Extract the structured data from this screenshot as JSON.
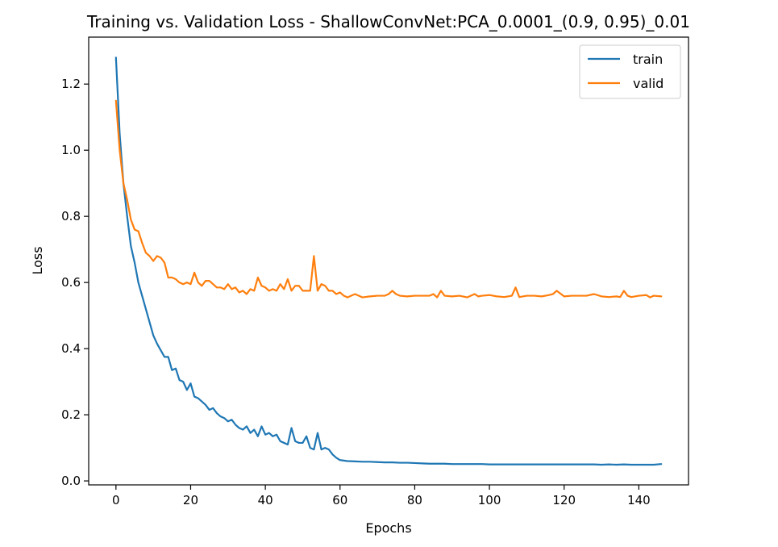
{
  "chart_data": {
    "type": "line",
    "title": "Training vs. Validation Loss - ShallowConvNet:PCA_0.0001_(0.9, 0.95)_0.01",
    "xlabel": "Epochs",
    "ylabel": "Loss",
    "xlim": [
      -7.3,
      153.3
    ],
    "ylim": [
      -0.012,
      1.342
    ],
    "xticks": [
      0,
      20,
      40,
      60,
      80,
      100,
      120,
      140
    ],
    "yticks": [
      0.0,
      0.2,
      0.4,
      0.6,
      0.8,
      1.0,
      1.2
    ],
    "xtick_labels": [
      "0",
      "20",
      "40",
      "60",
      "80",
      "100",
      "120",
      "140"
    ],
    "ytick_labels": [
      "0.0",
      "0.2",
      "0.4",
      "0.6",
      "0.8",
      "1.0",
      "1.2"
    ],
    "grid": false,
    "legend_position": "top-right",
    "series": [
      {
        "name": "train",
        "color": "#1f77b4",
        "x": [
          0,
          1,
          2,
          3,
          4,
          5,
          6,
          7,
          8,
          9,
          10,
          11,
          12,
          13,
          14,
          15,
          16,
          17,
          18,
          19,
          20,
          21,
          22,
          23,
          24,
          25,
          26,
          27,
          28,
          29,
          30,
          31,
          32,
          33,
          34,
          35,
          36,
          37,
          38,
          39,
          40,
          41,
          42,
          43,
          44,
          45,
          46,
          47,
          48,
          49,
          50,
          51,
          52,
          53,
          54,
          55,
          56,
          57,
          58,
          59,
          60,
          62,
          64,
          66,
          68,
          70,
          72,
          74,
          76,
          78,
          80,
          82,
          84,
          86,
          88,
          90,
          92,
          94,
          96,
          98,
          100,
          102,
          104,
          106,
          108,
          110,
          112,
          114,
          116,
          118,
          120,
          122,
          124,
          126,
          128,
          130,
          132,
          134,
          136,
          138,
          140,
          142,
          144,
          146
        ],
        "values": [
          1.28,
          1.05,
          0.9,
          0.8,
          0.71,
          0.66,
          0.6,
          0.56,
          0.52,
          0.48,
          0.44,
          0.415,
          0.395,
          0.375,
          0.375,
          0.335,
          0.34,
          0.305,
          0.3,
          0.275,
          0.295,
          0.255,
          0.25,
          0.24,
          0.23,
          0.215,
          0.22,
          0.205,
          0.195,
          0.19,
          0.18,
          0.185,
          0.17,
          0.16,
          0.155,
          0.165,
          0.145,
          0.155,
          0.135,
          0.165,
          0.14,
          0.145,
          0.135,
          0.14,
          0.12,
          0.115,
          0.11,
          0.16,
          0.12,
          0.115,
          0.115,
          0.135,
          0.1,
          0.095,
          0.145,
          0.095,
          0.1,
          0.095,
          0.08,
          0.07,
          0.063,
          0.06,
          0.059,
          0.058,
          0.058,
          0.057,
          0.056,
          0.056,
          0.055,
          0.055,
          0.054,
          0.053,
          0.052,
          0.052,
          0.052,
          0.051,
          0.051,
          0.051,
          0.051,
          0.051,
          0.05,
          0.05,
          0.05,
          0.05,
          0.05,
          0.05,
          0.05,
          0.05,
          0.05,
          0.05,
          0.05,
          0.05,
          0.05,
          0.05,
          0.05,
          0.049,
          0.05,
          0.049,
          0.05,
          0.049,
          0.049,
          0.049,
          0.049,
          0.051
        ]
      },
      {
        "name": "valid",
        "color": "#ff7f0e",
        "x": [
          0,
          1,
          2,
          3,
          4,
          5,
          6,
          7,
          8,
          9,
          10,
          11,
          12,
          13,
          14,
          15,
          16,
          17,
          18,
          19,
          20,
          21,
          22,
          23,
          24,
          25,
          26,
          27,
          28,
          29,
          30,
          31,
          32,
          33,
          34,
          35,
          36,
          37,
          38,
          39,
          40,
          41,
          42,
          43,
          44,
          45,
          46,
          47,
          48,
          49,
          50,
          51,
          52,
          53,
          54,
          55,
          56,
          57,
          58,
          59,
          60,
          61,
          62,
          63,
          64,
          65,
          66,
          68,
          70,
          72,
          73,
          74,
          75,
          76,
          78,
          80,
          82,
          84,
          85,
          86,
          87,
          88,
          90,
          92,
          94,
          96,
          97,
          98,
          100,
          102,
          104,
          106,
          107,
          108,
          110,
          112,
          114,
          116,
          117,
          118,
          120,
          122,
          124,
          126,
          128,
          130,
          132,
          134,
          135,
          136,
          137,
          138,
          140,
          142,
          143,
          144,
          146
        ],
        "values": [
          1.15,
          1.0,
          0.9,
          0.85,
          0.79,
          0.76,
          0.755,
          0.72,
          0.69,
          0.68,
          0.665,
          0.68,
          0.675,
          0.66,
          0.615,
          0.615,
          0.61,
          0.6,
          0.595,
          0.6,
          0.595,
          0.63,
          0.6,
          0.59,
          0.605,
          0.605,
          0.595,
          0.585,
          0.585,
          0.58,
          0.595,
          0.58,
          0.585,
          0.57,
          0.575,
          0.565,
          0.58,
          0.575,
          0.615,
          0.59,
          0.585,
          0.575,
          0.58,
          0.575,
          0.595,
          0.58,
          0.61,
          0.575,
          0.59,
          0.59,
          0.575,
          0.575,
          0.575,
          0.68,
          0.575,
          0.595,
          0.59,
          0.575,
          0.575,
          0.565,
          0.57,
          0.56,
          0.555,
          0.56,
          0.565,
          0.56,
          0.555,
          0.558,
          0.56,
          0.56,
          0.565,
          0.575,
          0.565,
          0.56,
          0.558,
          0.56,
          0.56,
          0.56,
          0.565,
          0.555,
          0.575,
          0.56,
          0.558,
          0.56,
          0.555,
          0.565,
          0.558,
          0.56,
          0.562,
          0.558,
          0.556,
          0.56,
          0.585,
          0.556,
          0.56,
          0.56,
          0.558,
          0.562,
          0.565,
          0.575,
          0.558,
          0.56,
          0.56,
          0.56,
          0.565,
          0.558,
          0.556,
          0.558,
          0.556,
          0.575,
          0.56,
          0.556,
          0.56,
          0.562,
          0.555,
          0.56,
          0.558
        ]
      }
    ]
  }
}
